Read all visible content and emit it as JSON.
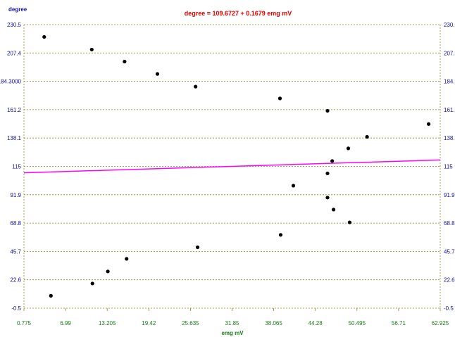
{
  "chart_data": {
    "type": "scatter",
    "title": "degree = 109.6727 + 0.1679 emg  mV",
    "xlabel": "emg  mV",
    "ylabel": "degree",
    "xlim": [
      0.775,
      62.925
    ],
    "ylim": [
      -0.5,
      230.5
    ],
    "x_ticks": [
      "0.775",
      "6.99",
      "13.205",
      "19.42",
      "25.635",
      "31.85",
      "38.065",
      "44.28",
      "50.495",
      "56.71",
      "62.925"
    ],
    "y_ticks_left": [
      "-0.5",
      "22.6",
      "45.7",
      "68.8",
      "91.9",
      "115",
      "138.1",
      "161.2",
      "184.3000",
      "207.4",
      "230.5"
    ],
    "y_ticks_right": [
      "-0.5",
      "22.6",
      "45.7",
      "68.8",
      "91.9",
      "115",
      "138.1",
      "161.2",
      "184.3000",
      "207.4",
      "230.5"
    ],
    "grid": true,
    "regression_line": {
      "intercept": 109.6727,
      "slope": 0.1679,
      "color": "#ff00ff"
    },
    "series": [
      {
        "points": [
          [
            3.8,
            220.5
          ],
          [
            10.9,
            210.2
          ],
          [
            15.8,
            200.4
          ],
          [
            20.7,
            190.3
          ],
          [
            26.4,
            180.0
          ],
          [
            39.0,
            170.4
          ],
          [
            46.1,
            160.3
          ],
          [
            61.2,
            149.5
          ],
          [
            52.0,
            139.1
          ],
          [
            49.2,
            129.7
          ],
          [
            46.8,
            119.4
          ],
          [
            46.1,
            109.3
          ],
          [
            41.0,
            99.3
          ],
          [
            46.1,
            89.6
          ],
          [
            47.0,
            79.8
          ],
          [
            49.4,
            69.4
          ],
          [
            39.1,
            59.2
          ],
          [
            26.7,
            49.1
          ],
          [
            16.1,
            39.7
          ],
          [
            13.3,
            29.4
          ],
          [
            11.0,
            19.6
          ],
          [
            4.8,
            9.6
          ]
        ]
      }
    ],
    "colors": {
      "points": "#000000",
      "grid": "#8a8a2a",
      "axis_labels": "#1010a0",
      "x_axis_labels": "#1a7a1a",
      "title": "#e00000"
    }
  }
}
